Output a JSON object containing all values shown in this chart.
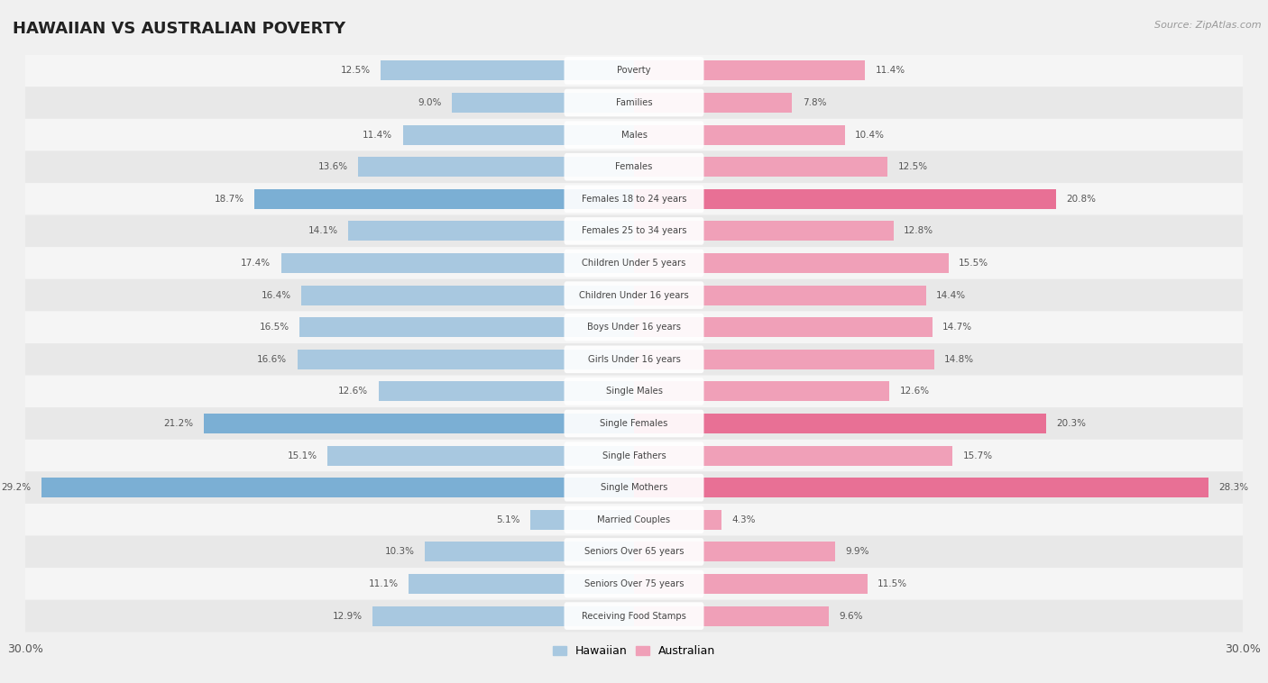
{
  "title": "HAWAIIAN VS AUSTRALIAN POVERTY",
  "source": "Source: ZipAtlas.com",
  "categories": [
    "Poverty",
    "Families",
    "Males",
    "Females",
    "Females 18 to 24 years",
    "Females 25 to 34 years",
    "Children Under 5 years",
    "Children Under 16 years",
    "Boys Under 16 years",
    "Girls Under 16 years",
    "Single Males",
    "Single Females",
    "Single Fathers",
    "Single Mothers",
    "Married Couples",
    "Seniors Over 65 years",
    "Seniors Over 75 years",
    "Receiving Food Stamps"
  ],
  "hawaiian": [
    12.5,
    9.0,
    11.4,
    13.6,
    18.7,
    14.1,
    17.4,
    16.4,
    16.5,
    16.6,
    12.6,
    21.2,
    15.1,
    29.2,
    5.1,
    10.3,
    11.1,
    12.9
  ],
  "australian": [
    11.4,
    7.8,
    10.4,
    12.5,
    20.8,
    12.8,
    15.5,
    14.4,
    14.7,
    14.8,
    12.6,
    20.3,
    15.7,
    28.3,
    4.3,
    9.9,
    11.5,
    9.6
  ],
  "hawaiian_color_normal": "#a8c8e0",
  "hawaiian_color_highlight": "#7bafd4",
  "australian_color_normal": "#f0a0b8",
  "australian_color_highlight": "#e87095",
  "highlight_rows": [
    4,
    11,
    13
  ],
  "background_color": "#f0f0f0",
  "row_bg_even": "#f5f5f5",
  "row_bg_odd": "#e8e8e8",
  "xlim": 30.0,
  "legend_hawaiian": "Hawaiian",
  "legend_australian": "Australian"
}
